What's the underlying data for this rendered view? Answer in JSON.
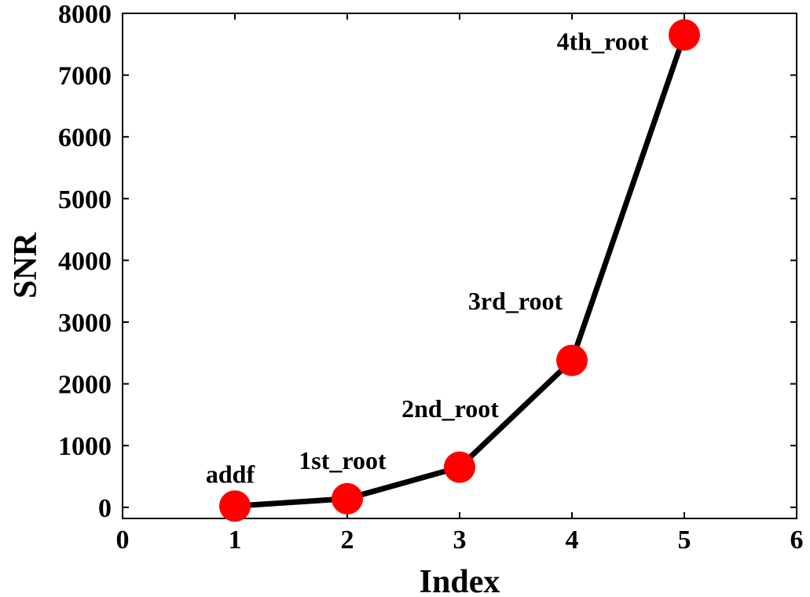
{
  "chart_data": {
    "type": "line",
    "xlabel": "Index",
    "ylabel": "SNR",
    "xlim": [
      0,
      6
    ],
    "ylim": [
      -180,
      8000
    ],
    "xticks": [
      "0",
      "1",
      "2",
      "3",
      "4",
      "5",
      "6"
    ],
    "yticks": [
      "0",
      "1000",
      "2000",
      "3000",
      "4000",
      "5000",
      "6000",
      "7000",
      "8000"
    ],
    "grid": false,
    "legend": "none",
    "series": [
      {
        "x": [
          1,
          2,
          3,
          4,
          5
        ],
        "y": [
          20,
          140,
          650,
          2380,
          7650
        ],
        "point_labels": [
          "addf",
          "1st_root",
          "2nd_root",
          "3rd_root",
          "4th_root"
        ],
        "line_color": "#000000",
        "marker_color": "#ff0000"
      }
    ]
  }
}
